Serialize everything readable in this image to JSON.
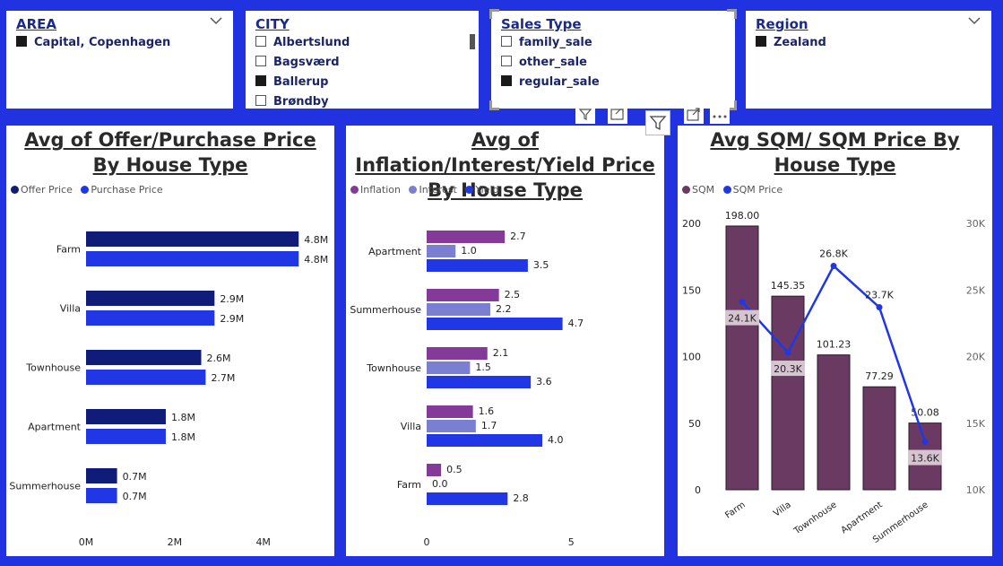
{
  "slicers": {
    "area": {
      "title": "AREA",
      "options": [
        {
          "label": "Capital, Copenhagen",
          "checked": true
        }
      ]
    },
    "city": {
      "title": "CITY",
      "options": [
        {
          "label": "Albertslund",
          "checked": false
        },
        {
          "label": "Bagsværd",
          "checked": false
        },
        {
          "label": "Ballerup",
          "checked": true
        },
        {
          "label": "Brøndby",
          "checked": false
        }
      ]
    },
    "sales_type": {
      "title": "Sales Type",
      "options": [
        {
          "label": "family_sale",
          "checked": false
        },
        {
          "label": "other_sale",
          "checked": false
        },
        {
          "label": "regular_sale",
          "checked": true
        }
      ]
    },
    "region": {
      "title": "Region",
      "options": [
        {
          "label": "Zealand",
          "checked": true
        }
      ]
    }
  },
  "icons": [
    "chevron-down-icon",
    "filter-icon",
    "focus-mode-icon",
    "more-options-icon"
  ],
  "chart_data": [
    {
      "type": "bar",
      "orientation": "horizontal",
      "title": "Avg of Offer/Purchase Price By House Type",
      "categories": [
        "Farm",
        "Villa",
        "Townhouse",
        "Apartment",
        "Summerhouse"
      ],
      "series": [
        {
          "name": "Offer Price",
          "color": "#0f1c78",
          "values": [
            4.8,
            2.9,
            2.6,
            1.8,
            0.7
          ],
          "labels": [
            "4.8M",
            "2.9M",
            "2.6M",
            "1.8M",
            "0.7M"
          ]
        },
        {
          "name": "Purchase Price",
          "color": "#2137e6",
          "values": [
            4.8,
            2.9,
            2.7,
            1.8,
            0.7
          ],
          "labels": [
            "4.8M",
            "2.9M",
            "2.7M",
            "1.8M",
            "0.7M"
          ]
        }
      ],
      "xticks": [
        "0M",
        "2M",
        "4M"
      ],
      "xtick_values": [
        0,
        2,
        4
      ],
      "xlim": [
        0,
        5.2
      ]
    },
    {
      "type": "bar",
      "orientation": "horizontal",
      "title": "Avg of Inflation/Interest/Yield Price By House Type",
      "categories": [
        "Apartment",
        "Summerhouse",
        "Townhouse",
        "Villa",
        "Farm"
      ],
      "series": [
        {
          "name": "Inflation",
          "color": "#833a98",
          "values": [
            2.7,
            2.5,
            2.1,
            1.6,
            0.5
          ],
          "labels": [
            "2.7",
            "2.5",
            "2.1",
            "1.6",
            "0.5"
          ]
        },
        {
          "name": "Interest",
          "color": "#7b7fd1",
          "values": [
            1.0,
            2.2,
            1.5,
            1.7,
            0.0
          ],
          "labels": [
            "1.0",
            "2.2",
            "1.5",
            "1.7",
            "0.0"
          ]
        },
        {
          "name": "Yield",
          "color": "#2137e6",
          "values": [
            3.5,
            4.7,
            3.6,
            4.0,
            2.8
          ],
          "labels": [
            "3.5",
            "4.7",
            "3.6",
            "4.0",
            "2.8"
          ]
        }
      ],
      "xticks": [
        "0",
        "5"
      ],
      "xtick_values": [
        0,
        5
      ],
      "xlim": [
        0,
        6.2
      ]
    },
    {
      "type": "bar-line-combo",
      "title": "Avg SQM/ SQM Price By House Type",
      "categories": [
        "Farm",
        "Villa",
        "Townhouse",
        "Apartment",
        "Summerhouse"
      ],
      "bar_series": {
        "name": "SQM",
        "color": "#6b3a62",
        "values": [
          198.0,
          145.35,
          101.23,
          77.29,
          50.08
        ],
        "labels": [
          "198.00",
          "145.35",
          "101.23",
          "77.29",
          "50.08"
        ]
      },
      "line_series": {
        "name": "SQM Price",
        "color": "#2137e6",
        "values": [
          24.1,
          20.3,
          26.8,
          23.7,
          13.6
        ],
        "labels": [
          "24.1K",
          "20.3K",
          "26.8K",
          "23.7K",
          "13.6K"
        ]
      },
      "y_left": {
        "ticks": [
          0,
          50,
          100,
          150,
          200
        ],
        "labels": [
          "0",
          "50",
          "100",
          "150",
          "200"
        ],
        "lim": [
          0,
          200
        ]
      },
      "y_right": {
        "ticks": [
          10,
          15,
          20,
          25,
          30
        ],
        "labels": [
          "10K",
          "15K",
          "20K",
          "25K",
          "30K"
        ],
        "lim": [
          10,
          30
        ]
      }
    }
  ]
}
